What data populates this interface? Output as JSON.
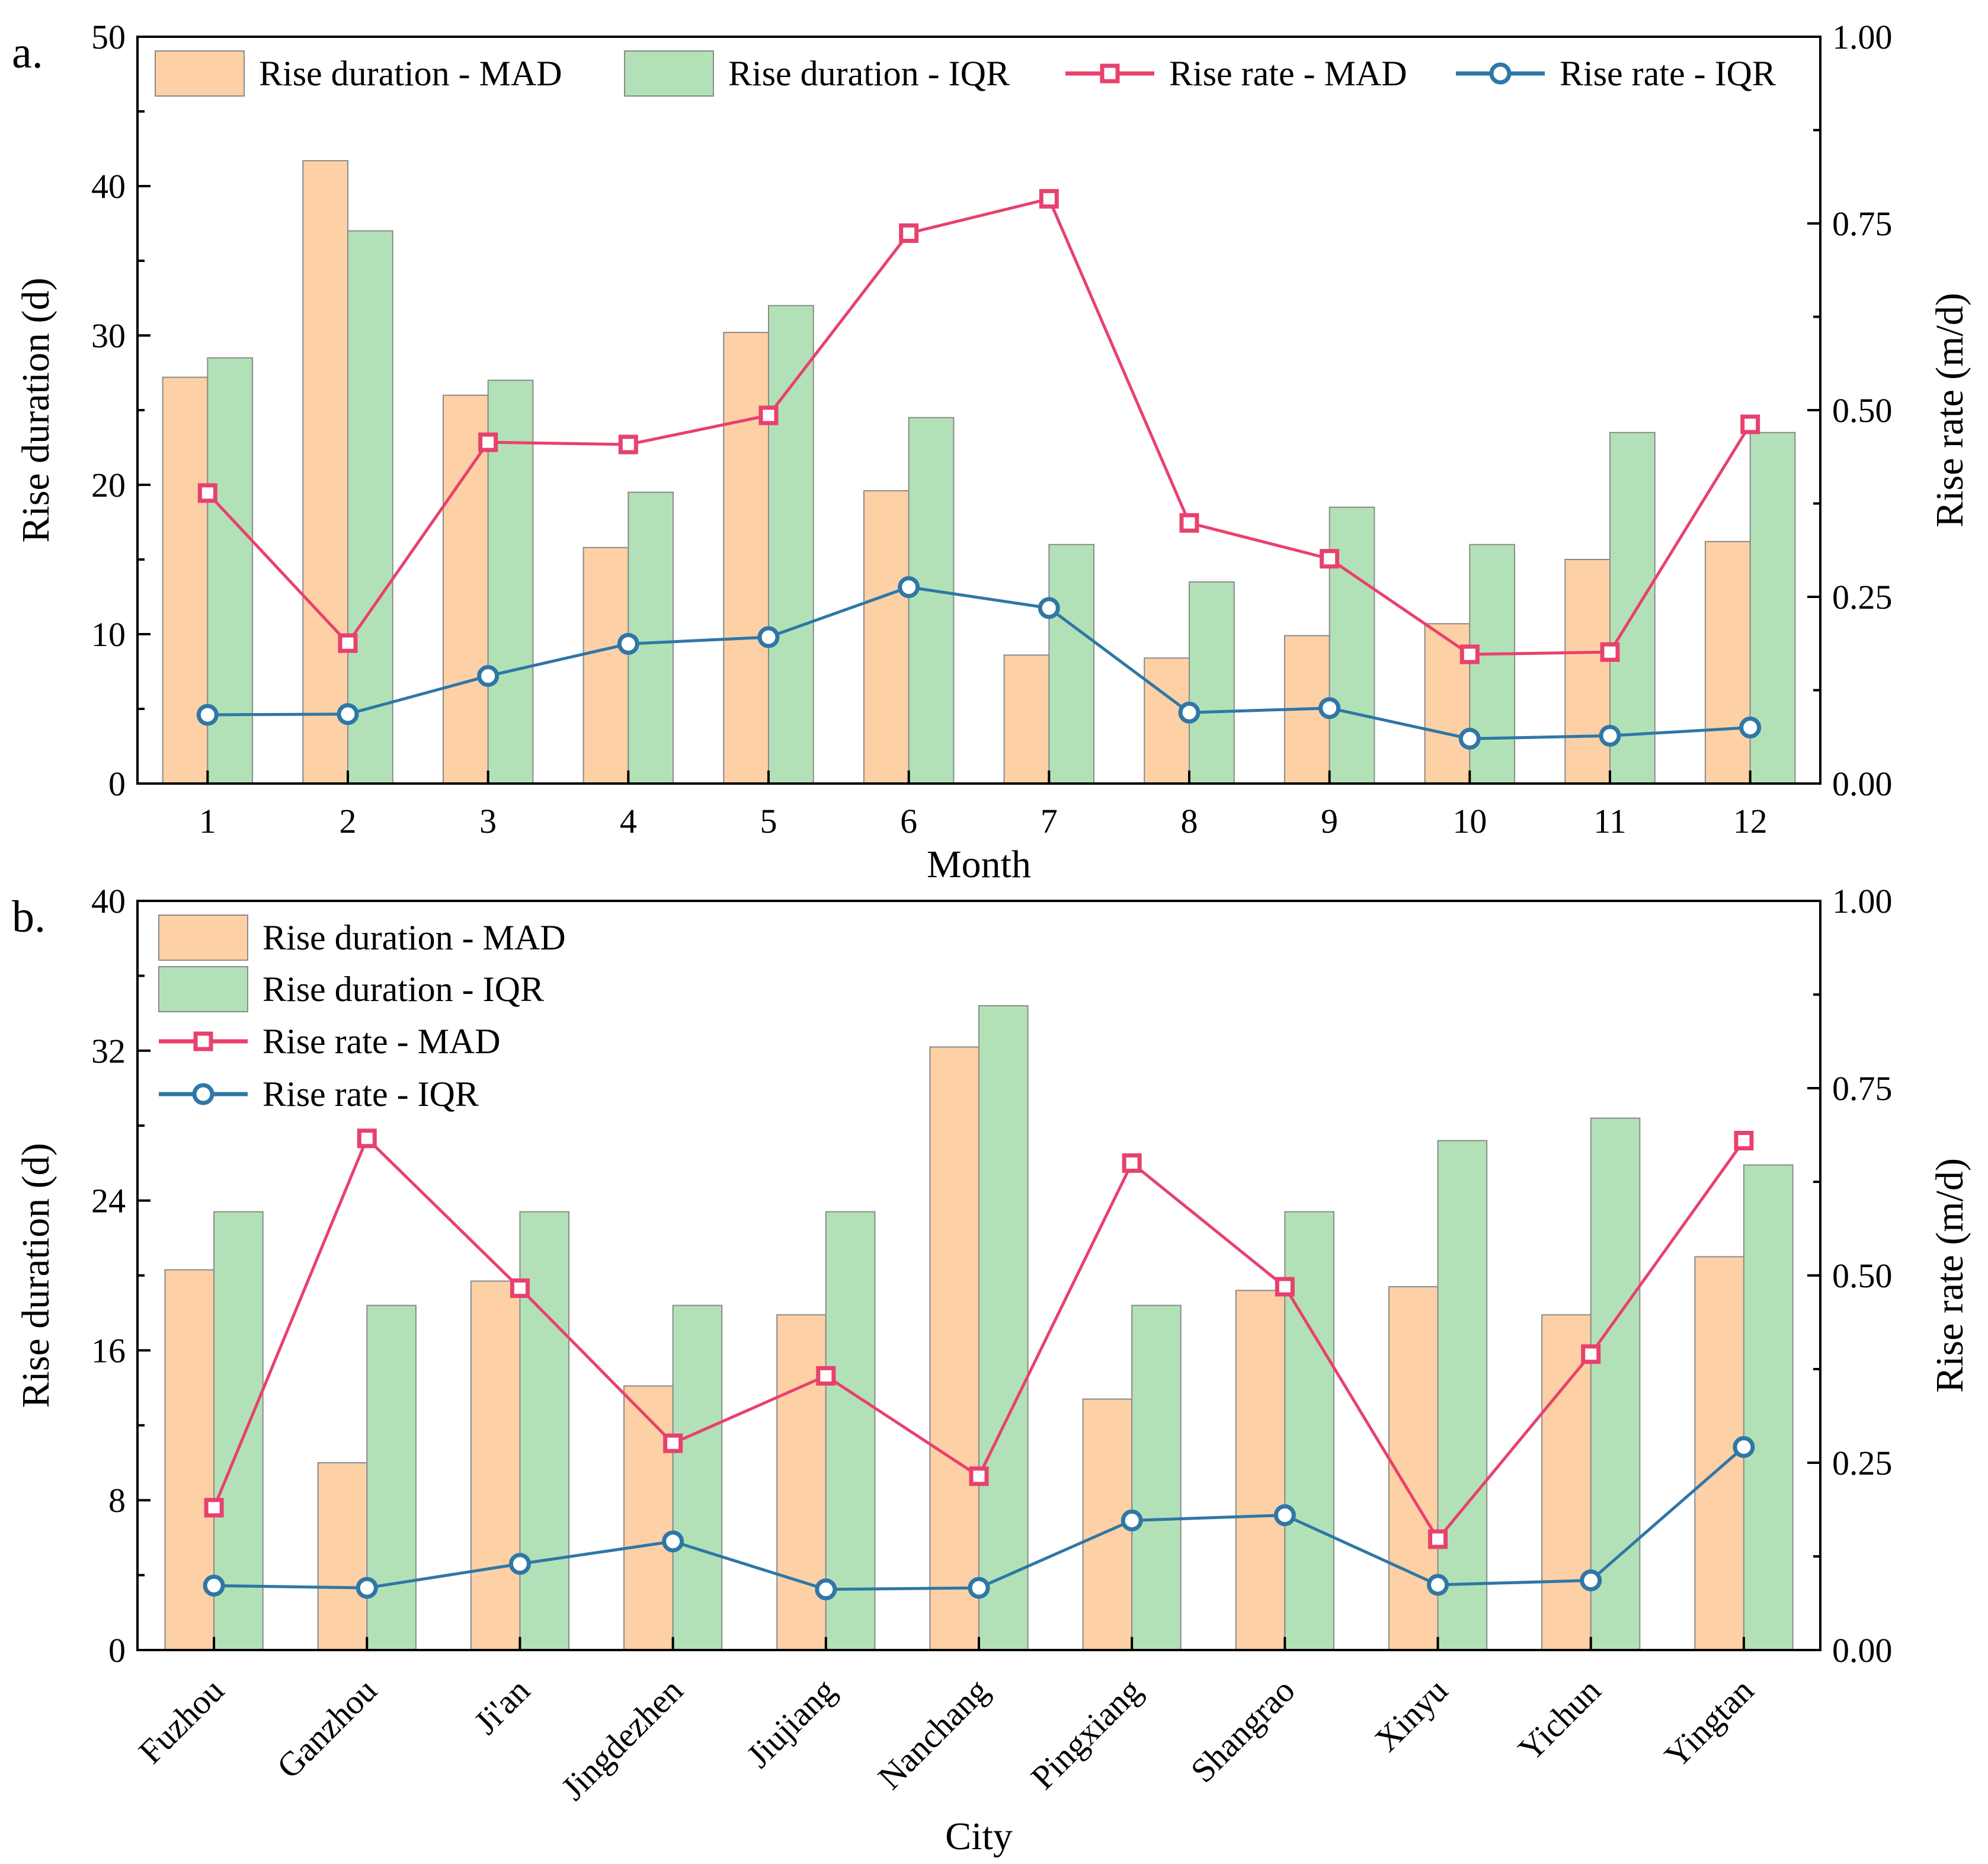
{
  "colors": {
    "bar_mad": "#fdd0a6",
    "bar_iqr": "#b3e1b7",
    "bar_stroke": "#8a8a8a",
    "line_mad": "#e8416d",
    "line_iqr": "#2e77a6"
  },
  "legend_labels": {
    "bar_mad": "Rise duration - MAD",
    "bar_iqr": "Rise duration - IQR",
    "line_mad": "Rise rate - MAD",
    "line_iqr": "Rise rate - IQR"
  },
  "chart_data": [
    {
      "panel_label": "a.",
      "type": "bar+line",
      "xlabel": "Month",
      "ylabel": "Rise duration (d)",
      "y2label": "Rise rate (m/d)",
      "ylim": [
        0,
        50
      ],
      "yticks": [
        "0",
        "10",
        "20",
        "30",
        "40",
        "50"
      ],
      "y2lim": [
        0,
        1
      ],
      "y2ticks": [
        "0.00",
        "0.25",
        "0.50",
        "0.75",
        "1.00"
      ],
      "categories": [
        "1",
        "2",
        "3",
        "4",
        "5",
        "6",
        "7",
        "8",
        "9",
        "10",
        "11",
        "12"
      ],
      "legend_placement": "top, single row",
      "series": [
        {
          "name": "Rise duration - MAD",
          "kind": "bar",
          "axis": "left",
          "values": [
            27.2,
            41.7,
            26.0,
            15.8,
            30.2,
            19.6,
            8.6,
            8.4,
            9.9,
            10.7,
            15.0,
            16.2
          ]
        },
        {
          "name": "Rise duration - IQR",
          "kind": "bar",
          "axis": "left",
          "values": [
            28.5,
            37.0,
            27.0,
            19.5,
            32.0,
            24.5,
            16.0,
            13.5,
            18.5,
            16.0,
            23.5,
            23.5
          ]
        },
        {
          "name": "Rise rate - MAD",
          "kind": "line",
          "marker": "square",
          "axis": "right",
          "values": [
            0.389,
            0.188,
            0.457,
            0.454,
            0.493,
            0.737,
            0.783,
            0.349,
            0.301,
            0.173,
            0.176,
            0.481
          ]
        },
        {
          "name": "Rise rate - IQR",
          "kind": "line",
          "marker": "circle",
          "axis": "right",
          "values": [
            0.092,
            0.093,
            0.144,
            0.187,
            0.196,
            0.263,
            0.235,
            0.095,
            0.101,
            0.06,
            0.064,
            0.075
          ]
        }
      ]
    },
    {
      "panel_label": "b.",
      "type": "bar+line",
      "xlabel": "City",
      "ylabel": "Rise duration (d)",
      "y2label": "Rise rate (m/d)",
      "ylim": [
        0,
        40
      ],
      "yticks": [
        "0",
        "8",
        "16",
        "24",
        "32",
        "40"
      ],
      "y2lim": [
        0,
        1
      ],
      "y2ticks": [
        "0.00",
        "0.25",
        "0.50",
        "0.75",
        "1.00"
      ],
      "categories": [
        "Fuzhou",
        "Ganzhou",
        "Ji'an",
        "Jingdezhen",
        "Jiujiang",
        "Nanchang",
        "Pingxiang",
        "Shangrao",
        "Xinyu",
        "Yichun",
        "Yingtan"
      ],
      "legend_placement": "top-left, stacked",
      "series": [
        {
          "name": "Rise duration - MAD",
          "kind": "bar",
          "axis": "left",
          "values": [
            20.3,
            10.0,
            19.7,
            14.1,
            17.9,
            32.2,
            13.4,
            19.2,
            19.4,
            17.9,
            21.0
          ]
        },
        {
          "name": "Rise duration - IQR",
          "kind": "bar",
          "axis": "left",
          "values": [
            23.4,
            18.4,
            23.4,
            18.4,
            23.4,
            34.4,
            18.4,
            23.4,
            27.2,
            28.4,
            25.9
          ]
        },
        {
          "name": "Rise rate - MAD",
          "kind": "line",
          "marker": "square",
          "axis": "right",
          "values": [
            0.19,
            0.683,
            0.483,
            0.276,
            0.366,
            0.232,
            0.65,
            0.485,
            0.148,
            0.395,
            0.68
          ]
        },
        {
          "name": "Rise rate - IQR",
          "kind": "line",
          "marker": "circle",
          "axis": "right",
          "values": [
            0.086,
            0.083,
            0.115,
            0.145,
            0.081,
            0.083,
            0.173,
            0.18,
            0.087,
            0.093,
            0.271
          ]
        }
      ]
    }
  ]
}
